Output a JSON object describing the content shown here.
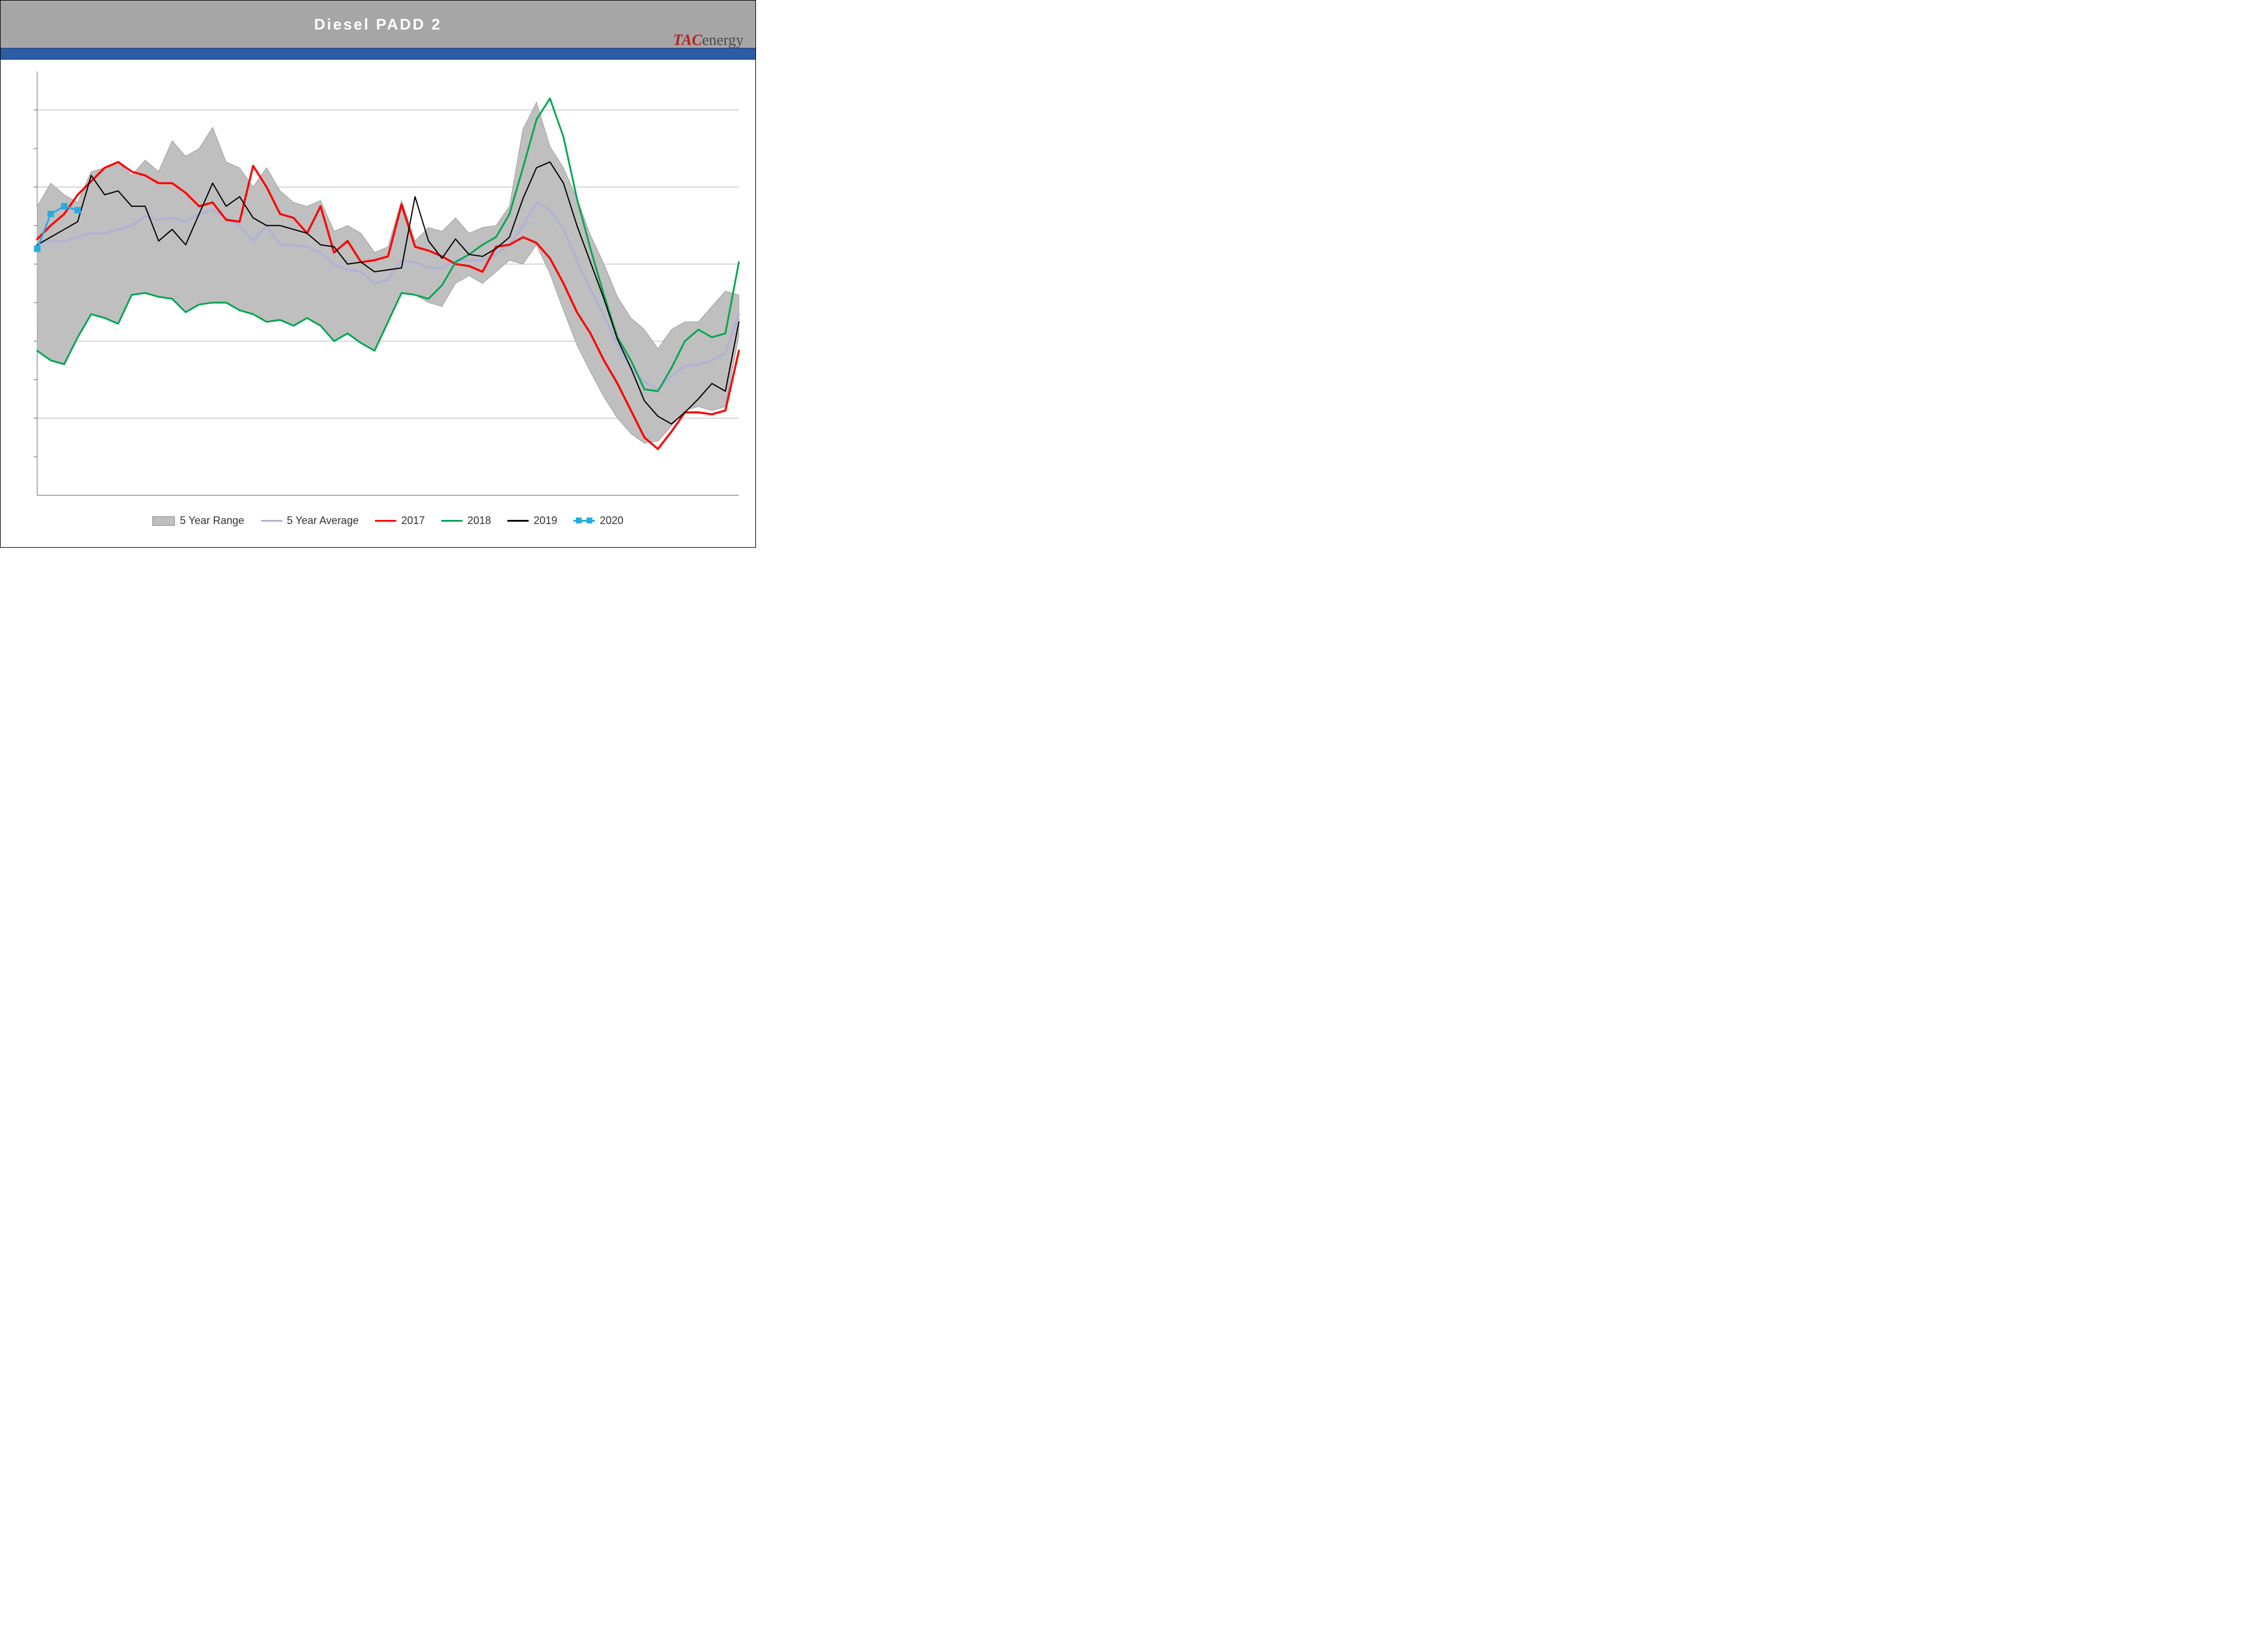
{
  "title": "Diesel  PADD  2",
  "logo": {
    "tac": "TAC",
    "energy": "energy"
  },
  "chart": {
    "type": "line-with-range",
    "background_color": "#ffffff",
    "title_bar_color": "#a6a6a6",
    "title_text_color": "#ffffff",
    "title_fontsize": 26,
    "accent_strip_color": "#2d5ca6",
    "grid_color": "#b0b0b0",
    "axis_color": "#666666",
    "x_count": 53,
    "ylim": [
      18,
      40
    ],
    "y_gridlines": [
      22,
      26,
      30,
      34,
      38
    ],
    "y_minor_ticks": [
      20,
      24,
      28,
      32,
      36
    ],
    "range": {
      "label": "5 Year Range",
      "fill": "#bfbfbf",
      "stroke": "#9e9e9e",
      "upper": [
        33.0,
        34.2,
        33.6,
        33.2,
        34.8,
        35.0,
        35.3,
        34.6,
        35.4,
        34.8,
        36.4,
        35.6,
        36.0,
        37.1,
        35.3,
        35.0,
        34.0,
        35.0,
        33.8,
        33.2,
        33.0,
        33.3,
        31.7,
        32.0,
        31.6,
        30.6,
        30.9,
        33.3,
        31.2,
        31.9,
        31.7,
        32.4,
        31.6,
        31.9,
        32.0,
        33.0,
        37.0,
        38.4,
        36.1,
        35.0,
        33.4,
        31.5,
        30.0,
        28.3,
        27.2,
        26.6,
        25.6,
        26.6,
        27.0,
        27.0,
        27.8,
        28.6,
        28.4
      ],
      "lower": [
        25.5,
        25.0,
        24.8,
        26.2,
        27.4,
        27.2,
        26.9,
        28.4,
        28.5,
        28.3,
        28.2,
        27.5,
        27.9,
        28.0,
        28.0,
        27.6,
        27.4,
        27.0,
        27.1,
        26.8,
        27.2,
        26.8,
        26.0,
        26.4,
        25.9,
        25.5,
        27.0,
        28.5,
        28.4,
        28.0,
        27.8,
        29.0,
        29.4,
        29.0,
        29.6,
        30.2,
        30.0,
        31.0,
        29.5,
        27.6,
        25.8,
        24.4,
        23.1,
        22.0,
        21.2,
        20.7,
        20.8,
        21.6,
        22.4,
        22.6,
        22.4,
        22.6,
        26.3
      ]
    },
    "series": [
      {
        "name": "5 Year Average",
        "color": "#b0b0d8",
        "width": 3.5,
        "values": [
          31.0,
          31.2,
          31.2,
          31.4,
          31.6,
          31.6,
          31.8,
          32.0,
          32.5,
          32.3,
          32.4,
          32.2,
          32.6,
          32.8,
          32.4,
          32.0,
          31.2,
          32.0,
          31.0,
          31.0,
          30.9,
          30.6,
          30.0,
          29.7,
          29.6,
          29.0,
          29.2,
          30.2,
          30.1,
          29.8,
          29.8,
          30.2,
          30.2,
          30.2,
          30.5,
          31.0,
          32.0,
          33.2,
          32.8,
          31.8,
          30.2,
          28.7,
          27.3,
          25.8,
          24.6,
          23.9,
          23.5,
          24.2,
          24.7,
          24.8,
          25.0,
          25.4,
          27.4
        ]
      },
      {
        "name": "2017",
        "color": "#ff0000",
        "width": 3.5,
        "values": [
          31.3,
          32.0,
          32.6,
          33.6,
          34.3,
          35.0,
          35.3,
          34.8,
          34.6,
          34.2,
          34.2,
          33.7,
          33.0,
          33.2,
          32.3,
          32.2,
          35.1,
          34.0,
          32.6,
          32.4,
          31.6,
          33.0,
          30.6,
          31.2,
          30.1,
          30.2,
          30.4,
          33.1,
          30.9,
          30.7,
          30.4,
          30.0,
          29.9,
          29.6,
          30.9,
          31.0,
          31.4,
          31.1,
          30.3,
          29.0,
          27.5,
          26.4,
          25.0,
          23.8,
          22.4,
          21.0,
          20.4,
          21.3,
          22.3,
          22.3,
          22.2,
          22.4,
          25.5
        ]
      },
      {
        "name": "2018",
        "color": "#00a651",
        "width": 3.0,
        "values": [
          25.5,
          25.0,
          24.8,
          26.2,
          27.4,
          27.2,
          26.9,
          28.4,
          28.5,
          28.3,
          28.2,
          27.5,
          27.9,
          28.0,
          28.0,
          27.6,
          27.4,
          27.0,
          27.1,
          26.8,
          27.2,
          26.8,
          26.0,
          26.4,
          25.9,
          25.5,
          27.0,
          28.5,
          28.4,
          28.2,
          28.9,
          30.1,
          30.5,
          31.0,
          31.4,
          32.6,
          35.0,
          37.5,
          38.6,
          36.6,
          33.4,
          30.8,
          28.4,
          26.2,
          25.0,
          23.5,
          23.4,
          24.6,
          26.0,
          26.6,
          26.2,
          26.4,
          30.1
        ]
      },
      {
        "name": "2019",
        "color": "#000000",
        "width": 2.0,
        "values": [
          31.0,
          31.4,
          31.8,
          32.2,
          34.6,
          33.6,
          33.8,
          33.0,
          33.0,
          31.2,
          31.8,
          31.0,
          32.6,
          34.2,
          33.0,
          33.5,
          32.4,
          32.0,
          32.0,
          31.8,
          31.6,
          31.0,
          30.9,
          30.0,
          30.1,
          29.6,
          29.7,
          29.8,
          33.5,
          31.2,
          30.3,
          31.3,
          30.5,
          30.4,
          30.8,
          31.4,
          33.4,
          35.0,
          35.3,
          34.2,
          32.0,
          30.1,
          28.2,
          26.1,
          24.6,
          22.9,
          22.1,
          21.7,
          22.3,
          23.0,
          23.8,
          23.4,
          27.0
        ]
      },
      {
        "name": "2020",
        "color": "#29abe2",
        "width": 3.0,
        "marker": "square",
        "marker_size": 10,
        "values": [
          30.8,
          32.6,
          33.0,
          32.8
        ]
      }
    ],
    "legend": {
      "fontsize": 18,
      "position": "bottom",
      "items": [
        "5 Year Range",
        "5 Year Average",
        "2017",
        "2018",
        "2019",
        "2020"
      ]
    }
  }
}
